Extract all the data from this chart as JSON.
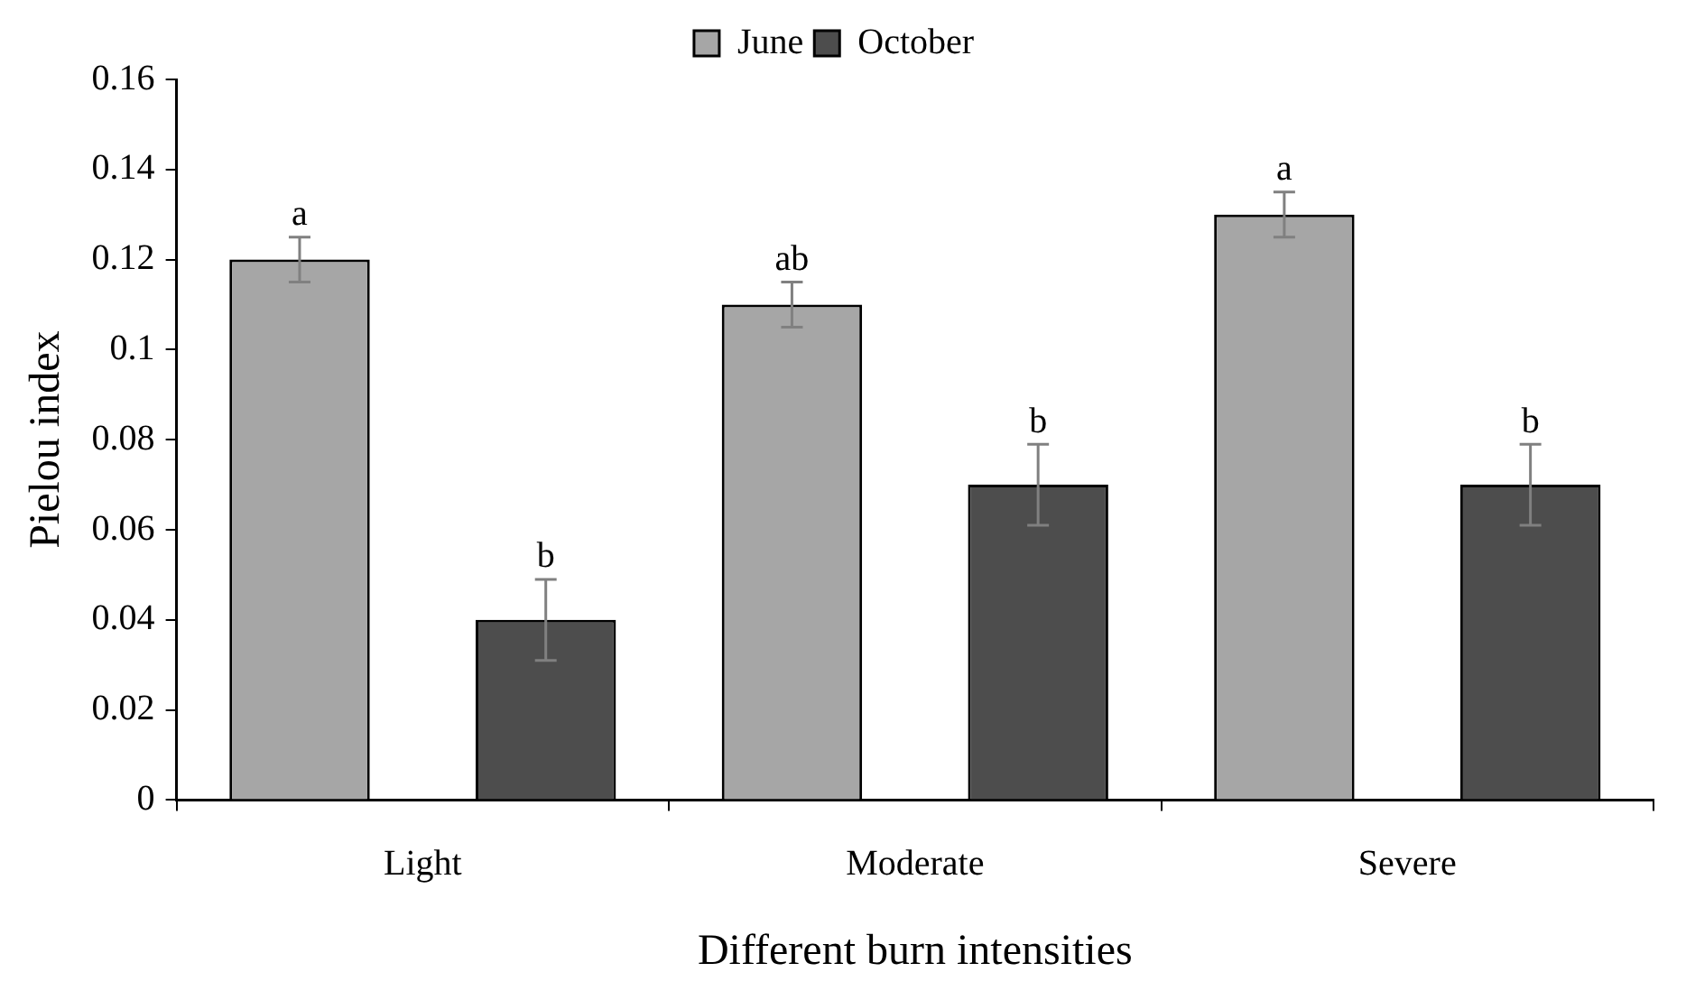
{
  "chart_data": {
    "type": "bar",
    "xlabel": "Different burn intensities",
    "ylabel": "Pielou index",
    "categories": [
      "Light",
      "Moderate",
      "Severe"
    ],
    "series": [
      {
        "name": "June",
        "color": "#a6a6a6",
        "values": [
          0.12,
          0.11,
          0.13
        ],
        "errors": [
          0.005,
          0.005,
          0.005
        ]
      },
      {
        "name": "October",
        "color": "#4d4d4d",
        "values": [
          0.04,
          0.07,
          0.07
        ],
        "errors": [
          0.009,
          0.009,
          0.009
        ]
      }
    ],
    "ylim": [
      0,
      0.16
    ],
    "yticks": [
      0,
      0.02,
      0.04,
      0.06,
      0.08,
      0.1,
      0.12,
      0.14,
      0.16
    ],
    "grid": false,
    "legend": "top",
    "annotations": [
      "a",
      "b",
      "ab",
      "b",
      "a",
      "b"
    ]
  }
}
